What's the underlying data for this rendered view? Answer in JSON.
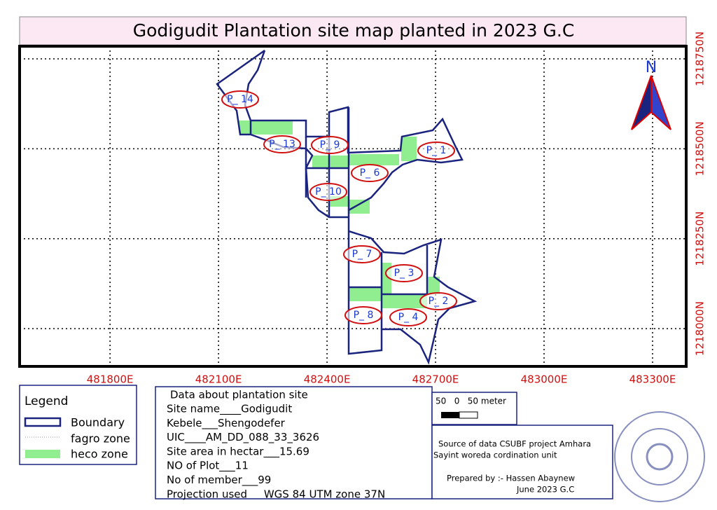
{
  "title": "Godigudit Plantation site map planted in 2023 G.C",
  "map": {
    "xlim": [
      481550,
      483393
    ],
    "ylim": [
      1217895,
      1218785
    ],
    "xticks": [
      {
        "value": 481800,
        "label": "481800E"
      },
      {
        "value": 482100,
        "label": "482100E"
      },
      {
        "value": 482400,
        "label": "482400E"
      },
      {
        "value": 482700,
        "label": "482700E"
      },
      {
        "value": 483000,
        "label": "483000E"
      },
      {
        "value": 483300,
        "label": "483300E"
      }
    ],
    "yticks": [
      {
        "value": 1218000,
        "label": "1218000N"
      },
      {
        "value": 1218250,
        "label": "1218250N"
      },
      {
        "value": 1218500,
        "label": "1218500N"
      },
      {
        "value": 1218750,
        "label": "1218750N"
      }
    ],
    "north": "N",
    "plots": [
      "P_ 14",
      "P_ 13",
      "P_ 9",
      "P_ 1",
      "P_ 6",
      "P_ 10",
      "P_ 7",
      "P_ 3",
      "P_ 2",
      "P_ 8",
      "P_ 4"
    ]
  },
  "legend": {
    "title": "Legend",
    "items": [
      "Boundary",
      "fagro zone",
      "heco zone"
    ]
  },
  "data_box": {
    "title": "Data about plantation site",
    "lines": [
      "Site name____Godigudit",
      "Kebele___Shengodefer",
      "UIC____AM_DD_088_33_3626",
      "Site area in hectar___15.69",
      "NO of Plot___11",
      "No of member___99",
      "Projection used     WGS 84 UTM zone 37N"
    ]
  },
  "scale_bar": {
    "label": "50   0   50 meter"
  },
  "source": {
    "lines": [
      "Source of data CSUBF project Amhara",
      "Sayint woreda cordination unit"
    ]
  },
  "prepared": {
    "lines": [
      "Prepared by :- Hassen Abaynew",
      "June 2023 G.C"
    ]
  }
}
